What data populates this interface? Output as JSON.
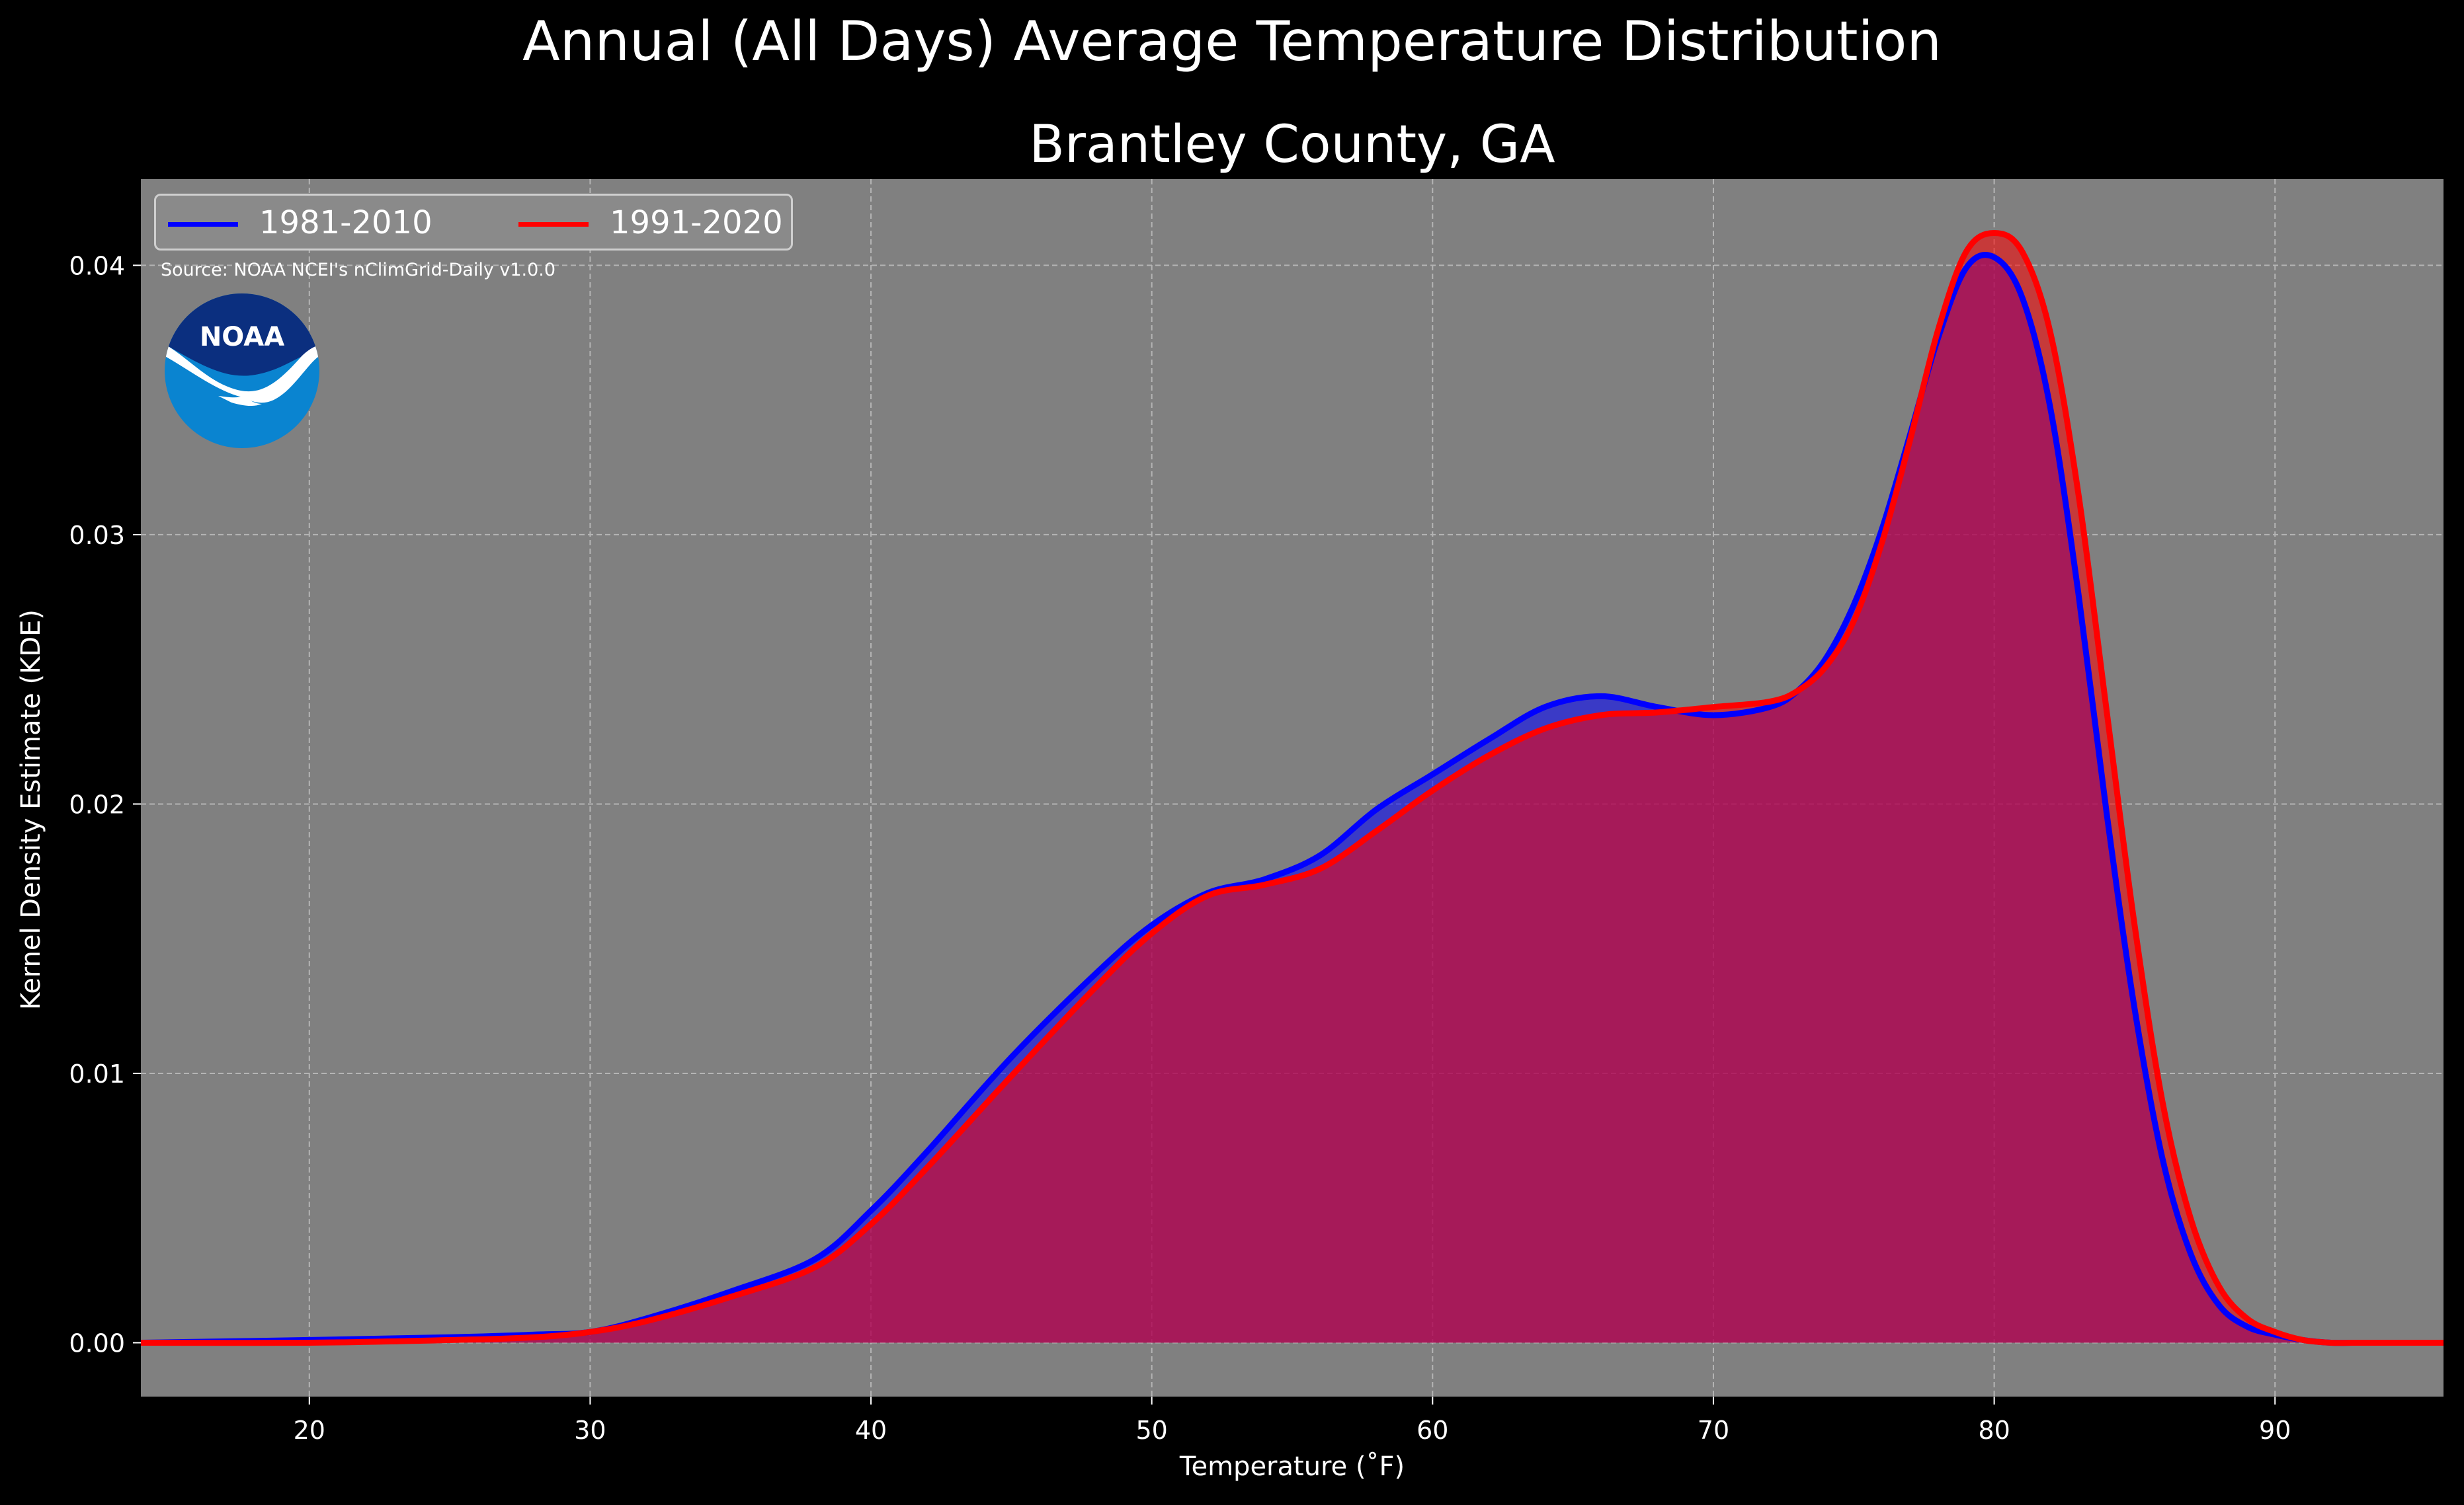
{
  "title": "Annual (All Days) Average Temperature Distribution",
  "subtitle": "Brantley County, GA",
  "source": "Source: NOAA NCEI's nClimGrid-Daily v1.0.0",
  "logo_text": "NOAA",
  "colors": {
    "background": "#000000",
    "plot_bg": "#808080",
    "series1": "#0000ff",
    "series2": "#ff0000",
    "fill_overlap": "#9d1e5c"
  },
  "chart_data": {
    "type": "area",
    "title": "Annual (All Days) Average Temperature Distribution",
    "subtitle": "Brantley County, GA",
    "xlabel": "Temperature (˚F)",
    "ylabel": "Kernel Density Estimate (KDE)",
    "xlim": [
      14,
      96
    ],
    "ylim": [
      -0.002,
      0.0432
    ],
    "xticks": [
      20,
      30,
      40,
      50,
      60,
      70,
      80,
      90
    ],
    "yticks": [
      0.0,
      0.01,
      0.02,
      0.03,
      0.04
    ],
    "ytick_labels": [
      "0.00",
      "0.01",
      "0.02",
      "0.03",
      "0.04"
    ],
    "grid": true,
    "legend_position": "top-left",
    "series": [
      {
        "name": "1981-2010",
        "color": "#0000ff",
        "x": [
          14,
          20,
          25,
          28,
          30,
          32,
          35,
          38,
          40,
          42,
          45,
          48,
          50,
          52,
          54,
          56,
          58,
          60,
          62,
          64,
          66,
          68,
          70,
          72,
          73,
          74,
          75,
          76,
          77,
          78,
          79,
          80,
          81,
          82,
          83,
          84,
          85,
          86,
          87,
          88,
          89,
          90,
          91,
          92,
          93,
          96
        ],
        "values": [
          0.0,
          0.0001,
          0.0002,
          0.0003,
          0.0004,
          0.0009,
          0.0019,
          0.0031,
          0.0049,
          0.0071,
          0.0106,
          0.0137,
          0.0155,
          0.0167,
          0.0172,
          0.0181,
          0.0198,
          0.0211,
          0.0224,
          0.0236,
          0.024,
          0.0236,
          0.0233,
          0.0236,
          0.0242,
          0.0254,
          0.0274,
          0.0302,
          0.0337,
          0.0373,
          0.0399,
          0.0403,
          0.0388,
          0.0347,
          0.0278,
          0.0197,
          0.0124,
          0.0068,
          0.0033,
          0.0014,
          0.0006,
          0.0003,
          0.0001,
          0.0,
          0.0,
          0.0
        ]
      },
      {
        "name": "1991-2020",
        "color": "#ff0000",
        "x": [
          14,
          20,
          25,
          28,
          30,
          32,
          35,
          38,
          40,
          42,
          45,
          48,
          50,
          52,
          54,
          56,
          58,
          60,
          62,
          64,
          66,
          68,
          70,
          72,
          73,
          74,
          75,
          76,
          77,
          78,
          79,
          80,
          81,
          82,
          83,
          84,
          85,
          86,
          87,
          88,
          89,
          90,
          91,
          92,
          93,
          96
        ],
        "values": [
          0.0,
          0.0,
          0.0001,
          0.0002,
          0.0004,
          0.0008,
          0.0017,
          0.0028,
          0.0044,
          0.0065,
          0.0099,
          0.0132,
          0.0152,
          0.0166,
          0.017,
          0.0176,
          0.019,
          0.0205,
          0.0218,
          0.0228,
          0.0233,
          0.0234,
          0.0236,
          0.0238,
          0.0242,
          0.0251,
          0.0268,
          0.0297,
          0.0335,
          0.0376,
          0.0405,
          0.0412,
          0.0405,
          0.0375,
          0.0315,
          0.0235,
          0.0155,
          0.0089,
          0.0046,
          0.0021,
          0.0009,
          0.0004,
          0.0001,
          0.0,
          0.0,
          0.0
        ]
      }
    ]
  }
}
